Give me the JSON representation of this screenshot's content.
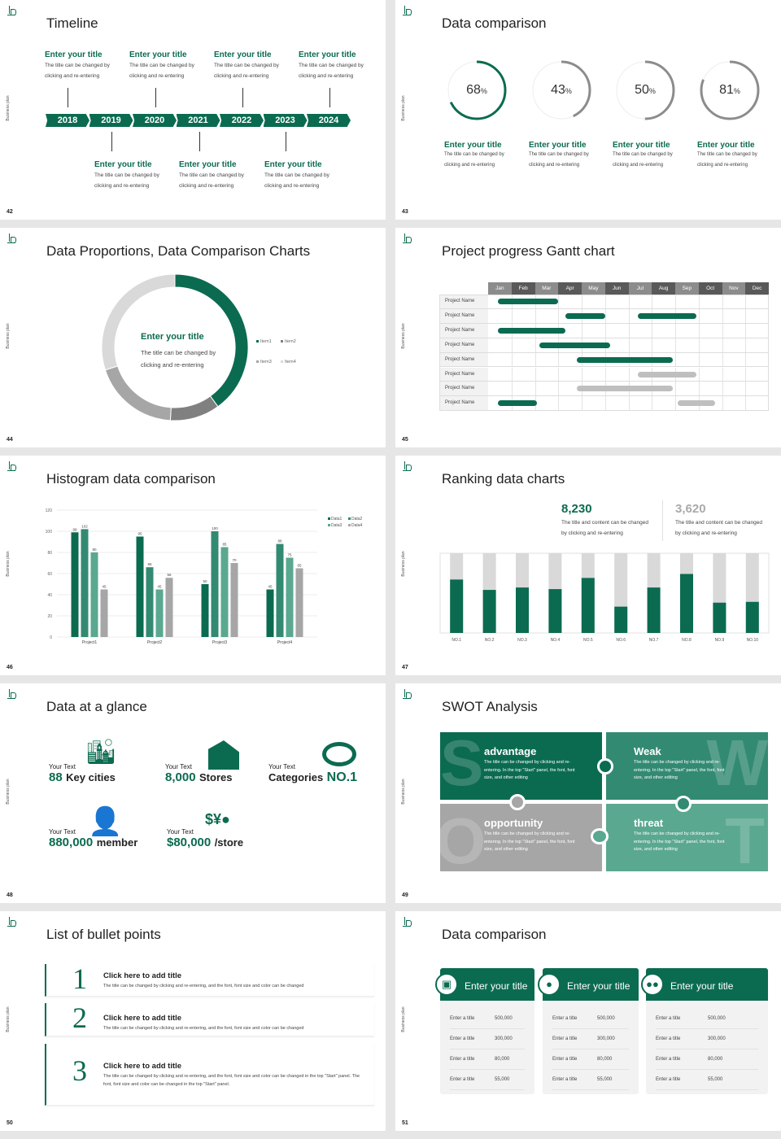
{
  "common": {
    "side_text": "Business plan"
  },
  "colors": {
    "green": "#0b6b50",
    "green2": "#338a72",
    "green3": "#5aa890",
    "gray": "#a6a6a6",
    "light": "#d9d9d9"
  },
  "s42": {
    "page": "42",
    "title": "Timeline",
    "years": [
      "2018",
      "2019",
      "2020",
      "2021",
      "2022",
      "2023",
      "2024"
    ],
    "top_items": [
      {
        "title": "Enter your title",
        "desc1": "The title can be changed by",
        "desc2": "clicking and re-entering"
      },
      {
        "title": "Enter your title",
        "desc1": "The title can be changed by",
        "desc2": "clicking and re-entering"
      },
      {
        "title": "Enter your title",
        "desc1": "The title can be changed by",
        "desc2": "clicking and re-entering"
      },
      {
        "title": "Enter your title",
        "desc1": "The title can be changed by",
        "desc2": "clicking and re-entering"
      }
    ],
    "bottom_items": [
      {
        "title": "Enter your title",
        "desc1": "The title can be changed by",
        "desc2": "clicking and re-entering"
      },
      {
        "title": "Enter your title",
        "desc1": "The title can be changed by",
        "desc2": "clicking and re-entering"
      },
      {
        "title": "Enter your title",
        "desc1": "The title can be changed by",
        "desc2": "clicking and re-entering"
      }
    ]
  },
  "s43": {
    "page": "43",
    "title": "Data comparison",
    "items": [
      {
        "value": "68",
        "unit": "%",
        "fraction": 0.68,
        "title": "Enter your title",
        "desc1": "The title can be changed by",
        "desc2": "clicking and re-entering"
      },
      {
        "value": "43",
        "unit": "%",
        "fraction": 0.43,
        "title": "Enter your title",
        "desc1": "The title can be changed by",
        "desc2": "clicking and re-entering"
      },
      {
        "value": "50",
        "unit": "%",
        "fraction": 0.5,
        "title": "Enter your title",
        "desc1": "The title can be changed by",
        "desc2": "clicking and re-entering"
      },
      {
        "value": "81",
        "unit": "%",
        "fraction": 0.81,
        "title": "Enter your title",
        "desc1": "The title can be changed by",
        "desc2": "clicking and re-entering"
      }
    ]
  },
  "s44": {
    "page": "44",
    "title": "Data Proportions, Data Comparison Charts",
    "center_title": "Enter your title",
    "center_desc1": "The title can be changed by",
    "center_desc2": "clicking and re-entering"
  },
  "s45": {
    "page": "45",
    "title": "Project progress Gantt chart",
    "months": [
      "Jan",
      "Feb",
      "Mar",
      "Apr",
      "May",
      "Jun",
      "Jul",
      "Aug",
      "Sep",
      "Oct",
      "Nov",
      "Dec"
    ],
    "rows": [
      {
        "label": "Project Name",
        "bars": [
          {
            "start": 0.4,
            "end": 3.0,
            "status": "active"
          }
        ]
      },
      {
        "label": "Project Name",
        "bars": [
          {
            "start": 3.3,
            "end": 5.0,
            "status": "active"
          },
          {
            "start": 6.4,
            "end": 8.9,
            "status": "active"
          }
        ]
      },
      {
        "label": "Project Name",
        "bars": [
          {
            "start": 0.4,
            "end": 3.3,
            "status": "active"
          }
        ]
      },
      {
        "label": "Project Name",
        "bars": [
          {
            "start": 2.2,
            "end": 5.2,
            "status": "active"
          }
        ]
      },
      {
        "label": "Project Name",
        "bars": [
          {
            "start": 3.8,
            "end": 7.9,
            "status": "active"
          }
        ]
      },
      {
        "label": "Project Name",
        "bars": [
          {
            "start": 6.4,
            "end": 8.9,
            "status": "planned"
          }
        ]
      },
      {
        "label": "Project Name",
        "bars": [
          {
            "start": 3.8,
            "end": 7.9,
            "status": "planned"
          }
        ]
      },
      {
        "label": "Project Name",
        "bars": [
          {
            "start": 0.4,
            "end": 2.1,
            "status": "active"
          },
          {
            "start": 8.1,
            "end": 9.7,
            "status": "planned"
          }
        ]
      }
    ]
  },
  "s46": {
    "page": "46",
    "title": "Histogram data comparison"
  },
  "s47": {
    "page": "47",
    "title": "Ranking data charts",
    "stat1": {
      "value": "8,230",
      "desc1": "The title and content can be changed",
      "desc2": "by clicking and re-entering"
    },
    "stat2": {
      "value": "3,620",
      "desc1": "The title and content can be changed",
      "desc2": "by clicking and re-entering"
    }
  },
  "s48": {
    "page": "48",
    "title": "Data at a glance",
    "items": [
      {
        "label": "Your Text",
        "value": "88",
        "unit": "Key cities",
        "icon": "city-buildings-icon"
      },
      {
        "label": "Your Text",
        "value": "8,000",
        "unit": "Stores",
        "icon": "store-icon"
      },
      {
        "label": "Your Text",
        "unit": "Categories",
        "value": "NO.1",
        "icon": "pie-chart-3d-icon"
      },
      {
        "label": "Your Text",
        "value": "880,000",
        "unit": "member",
        "icon": "user-add-icon"
      },
      {
        "label": "Your Text",
        "value": "$80,000",
        "unit": "/store",
        "icon": "coins-icon"
      }
    ]
  },
  "s49": {
    "page": "49",
    "title": "SWOT Analysis",
    "quadrants": [
      {
        "letter": "S",
        "title": "advantage",
        "desc": "The title can be changed by clicking and re-entering. In the top \"Start\" panel, the font, font size, and other editing"
      },
      {
        "letter": "W",
        "title": "Weak",
        "desc": "The title can be changed by clicking and re-entering. In the top \"Start\" panel, the font, font size, and other editing"
      },
      {
        "letter": "O",
        "title": "opportunity",
        "desc": "The title can be changed by clicking and re-entering. In the top \"Start\" panel, the font, font size, and other editing"
      },
      {
        "letter": "T",
        "title": "threat",
        "desc": "The title can be changed by clicking and re-entering. In the top \"Start\" panel, the font, font size, and other editing"
      }
    ]
  },
  "s50": {
    "page": "50",
    "title": "List of bullet points",
    "items": [
      {
        "num": "1",
        "title": "Click here to add title",
        "desc": "The title can be changed by clicking and re-entering, and the font, font size and color can be changed"
      },
      {
        "num": "2",
        "title": "Click here to add title",
        "desc": "The title can be changed by clicking and re-entering, and the font, font size and color can be changed"
      },
      {
        "num": "3",
        "title": "Click here to add title",
        "desc": "The title can be changed by clicking and re-entering, and the font, font size and color can be changed in the top \"Start\" panel. The font, font size and color can be changed in the top \"Start\" panel."
      }
    ]
  },
  "s51": {
    "page": "51",
    "title": "Data comparison",
    "cards": [
      {
        "title": "Enter your title",
        "icon": "tablet-user-icon",
        "rows": [
          {
            "label": "Enter a title",
            "value": "500,000"
          },
          {
            "label": "Enter a title",
            "value": "300,000"
          },
          {
            "label": "Enter a title",
            "value": "80,000"
          },
          {
            "label": "Enter a title",
            "value": "55,000"
          }
        ]
      },
      {
        "title": "Enter your title",
        "icon": "user-icon",
        "rows": [
          {
            "label": "Enter a title",
            "value": "500,000"
          },
          {
            "label": "Enter a title",
            "value": "300,000"
          },
          {
            "label": "Enter a title",
            "value": "80,000"
          },
          {
            "label": "Enter a title",
            "value": "55,000"
          }
        ]
      },
      {
        "title": "Enter your title",
        "icon": "users-icon",
        "rows": [
          {
            "label": "Enter a title",
            "value": "500,000"
          },
          {
            "label": "Enter a title",
            "value": "300,000"
          },
          {
            "label": "Enter a title",
            "value": "80,000"
          },
          {
            "label": "Enter a title",
            "value": "55,000"
          }
        ]
      }
    ]
  },
  "chart_data": [
    {
      "type": "pie",
      "variant": "donut",
      "categories": [
        "Item1",
        "Item2",
        "Item3",
        "Item4"
      ],
      "values": [
        40,
        11,
        19,
        30
      ],
      "colors": [
        "#0b6b50",
        "#808080",
        "#a6a6a6",
        "#d9d9d9"
      ],
      "legend": "right"
    },
    {
      "type": "bar",
      "categories": [
        "Project1",
        "Project2",
        "Project3",
        "Project4"
      ],
      "series": [
        {
          "name": "Data1",
          "values": [
            99,
            95,
            50,
            45
          ],
          "color": "#0b6b50"
        },
        {
          "name": "Data2",
          "values": [
            102,
            66,
            100,
            88
          ],
          "color": "#338a72"
        },
        {
          "name": "Data3",
          "values": [
            80,
            45,
            85,
            75
          ],
          "color": "#5aa890"
        },
        {
          "name": "Data4",
          "values": [
            45,
            56,
            70,
            65
          ],
          "color": "#a6a6a6"
        }
      ],
      "yticks": [
        0,
        20,
        40,
        60,
        80,
        100,
        120
      ],
      "ylim": [
        0,
        120
      ],
      "grid": true,
      "legend": "top-right",
      "data_labels": true
    },
    {
      "type": "bar",
      "variant": "stacked-100",
      "categories": [
        "NO.1",
        "NO.2",
        "NO.3",
        "NO.4",
        "NO.5",
        "NO.6",
        "NO.7",
        "NO.8",
        "NO.9",
        "NO.10"
      ],
      "values": [
        0.67,
        0.54,
        0.57,
        0.55,
        0.69,
        0.33,
        0.57,
        0.74,
        0.38,
        0.39
      ],
      "ylim": [
        0,
        1
      ],
      "colors": [
        "#0b6b50",
        "#d9d9d9"
      ]
    }
  ]
}
